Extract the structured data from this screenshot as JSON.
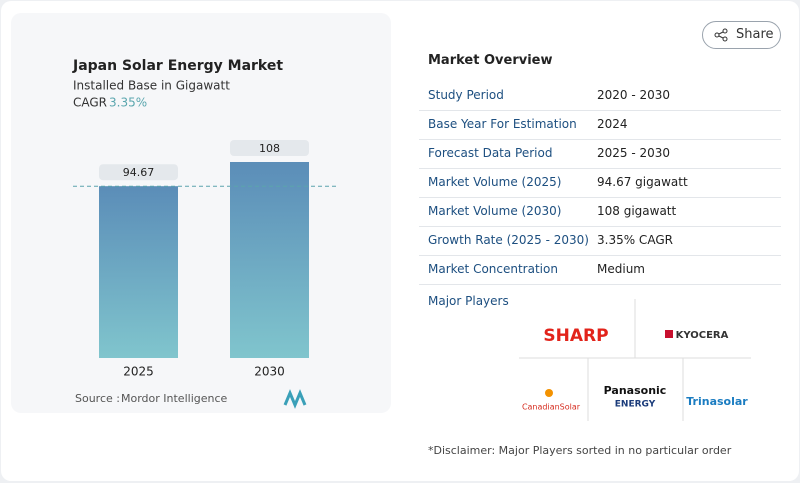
{
  "chart_data": {
    "type": "bar",
    "title": "Japan Solar Energy Market",
    "subtitle": "Installed Base in Gigawatt",
    "cagr_label": "CAGR",
    "cagr": "3.35%",
    "categories": [
      "2025",
      "2030"
    ],
    "values": [
      94.67,
      108
    ],
    "source_label": "Source :",
    "source": "Mordor Intelligence"
  },
  "share_button": "Share",
  "overview": {
    "title": "Market Overview",
    "rows": [
      [
        "Study Period",
        "2020 - 2030"
      ],
      [
        "Base Year For Estimation",
        "2024"
      ],
      [
        "Forecast Data Period",
        "2025 - 2030"
      ],
      [
        "Market Volume (2025)",
        "94.67 gigawatt"
      ],
      [
        "Market Volume (2030)",
        "108 gigawatt"
      ],
      [
        "Growth Rate (2025 - 2030)",
        "3.35% CAGR"
      ],
      [
        "Market Concentration",
        "Medium"
      ]
    ]
  },
  "players": {
    "title": "Major Players",
    "logos": [
      "SHARP",
      "KYOCERA",
      "CanadianSolar",
      "Panasonic",
      "ENERGY",
      "Trinasolar"
    ]
  },
  "disclaimer": "*Disclaimer: Major Players sorted in no particular order"
}
